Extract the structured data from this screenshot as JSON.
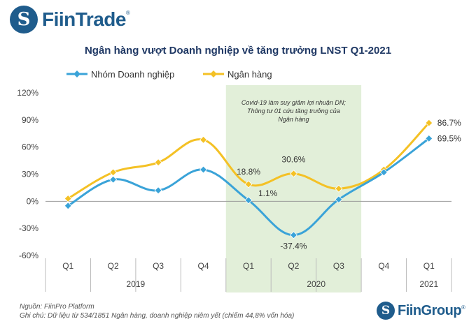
{
  "brand": {
    "top_name": "FiinTrade",
    "top_mark": "®",
    "bottom_name": "FiinGroup",
    "bottom_mark": "®",
    "logo_glyph": "S"
  },
  "footer": {
    "source": "Nguồn: FiinPro Platform",
    "note": "Ghi chú: Dữ liệu từ 534/1851 Ngân hàng, doanh nghiệp niêm yết (chiếm 44,8% vốn hóa)"
  },
  "colors": {
    "enterprise": "#3aa3d8",
    "bank": "#f4c125",
    "highlight": "#e2efd9",
    "title": "#1f3864",
    "logo": "#1f5c8c"
  },
  "chart_data": {
    "type": "line",
    "title": "Ngân hàng vượt Doanh nghiệp về tăng trưởng LNST Q1-2021",
    "categories": [
      "Q1",
      "Q2",
      "Q3",
      "Q4",
      "Q1",
      "Q2",
      "Q3",
      "Q4",
      "Q1"
    ],
    "groups": [
      {
        "label": "2019",
        "start": 0,
        "end": 3
      },
      {
        "label": "2020",
        "start": 4,
        "end": 7
      },
      {
        "label": "2021",
        "start": 8,
        "end": 8
      }
    ],
    "ylim": [
      -60,
      120
    ],
    "yticks": [
      -60,
      -30,
      0,
      30,
      60,
      90,
      120
    ],
    "ytick_labels": [
      "-60%",
      "-30%",
      "0%",
      "30%",
      "60%",
      "90%",
      "120%"
    ],
    "series": [
      {
        "name": "Nhóm Doanh nghiệp",
        "values": [
          -5,
          24,
          12,
          35,
          1.1,
          -37.4,
          2,
          32,
          69.5
        ]
      },
      {
        "name": "Ngân hàng",
        "values": [
          3,
          32,
          43,
          68,
          18.8,
          30.6,
          14,
          35,
          86.7
        ]
      }
    ],
    "data_labels": [
      {
        "series": 1,
        "index": 4,
        "text": "18.8%"
      },
      {
        "series": 0,
        "index": 4,
        "text": "1.1%"
      },
      {
        "series": 1,
        "index": 5,
        "text": "30.6%"
      },
      {
        "series": 0,
        "index": 5,
        "text": "-37.4%"
      },
      {
        "series": 1,
        "index": 8,
        "text": "86.7%"
      },
      {
        "series": 0,
        "index": 8,
        "text": "69.5%"
      }
    ],
    "highlight": {
      "start_index": 4,
      "end_index": 6,
      "annotation": [
        "Covid-19 làm suy giảm lợi nhuận DN;",
        "Thông tư 01 cứu tăng trưởng của",
        "Ngân hàng"
      ]
    },
    "legend_position": "top-left"
  }
}
